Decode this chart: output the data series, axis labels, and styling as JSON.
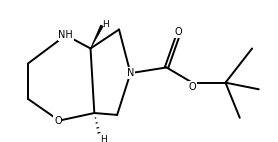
{
  "bg_color": "#ffffff",
  "line_color": "#000000",
  "line_width": 1.4,
  "font_size_atom": 7.0,
  "fig_width": 2.78,
  "fig_height": 1.42,
  "dpi": 100,
  "xlim": [
    -0.2,
    10.2
  ],
  "ylim": [
    0.3,
    5.4
  ]
}
